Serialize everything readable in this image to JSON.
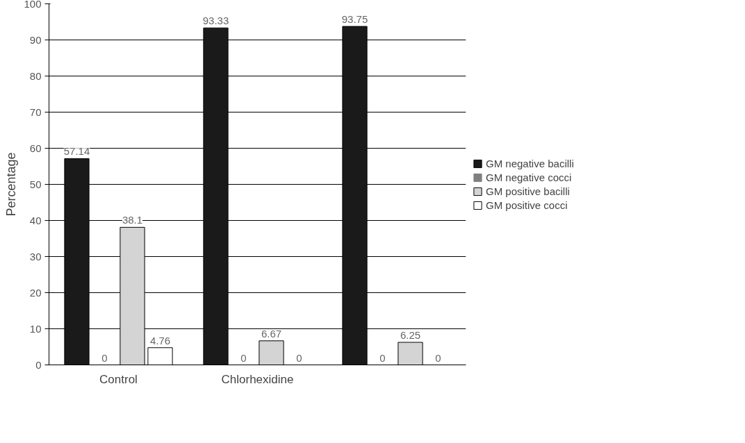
{
  "chart_data": {
    "type": "bar",
    "ylabel": "Percentage",
    "categories": [
      "Control",
      "Chlorhexidine",
      null
    ],
    "series": [
      {
        "name": "GM negative bacilli",
        "color": "#1a1a1a",
        "values": [
          57.14,
          93.33,
          93.75
        ]
      },
      {
        "name": "GM negative cocci",
        "color": "#808080",
        "values": [
          0,
          0,
          0
        ]
      },
      {
        "name": "GM positive bacilli",
        "color": "#d4d4d4",
        "values": [
          38.1,
          6.67,
          6.25
        ]
      },
      {
        "name": "GM positive cocci",
        "color": "#ffffff",
        "values": [
          4.76,
          0,
          0
        ]
      }
    ],
    "ylim": [
      0,
      100
    ],
    "yticks": [
      0,
      10,
      20,
      30,
      40,
      50,
      60,
      70,
      80,
      90,
      100
    ],
    "grid": "y",
    "legend": "right",
    "data_labels": true
  }
}
